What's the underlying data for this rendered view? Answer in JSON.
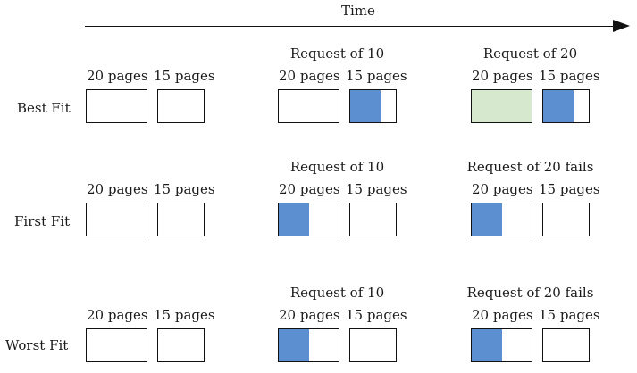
{
  "time_label": "Time",
  "colors": {
    "allocated": "#5b8fcf",
    "allocated_new": "#d6e8cd",
    "border": "#111111"
  },
  "block_labels": {
    "b20": "20 pages",
    "b15": "15 pages"
  },
  "rows": [
    {
      "name": "Best Fit",
      "stages": [
        {
          "request": "",
          "fill20": 0,
          "fill15": 0,
          "color20": "",
          "color15": ""
        },
        {
          "request": "Request of 10",
          "fill20": 0,
          "fill15": 0.67,
          "color20": "",
          "color15": "allocated"
        },
        {
          "request": "Request of 20",
          "fill20": 1,
          "fill15": 0.67,
          "color20": "allocated_new",
          "color15": "allocated"
        }
      ]
    },
    {
      "name": "First Fit",
      "stages": [
        {
          "request": "",
          "fill20": 0,
          "fill15": 0,
          "color20": "",
          "color15": ""
        },
        {
          "request": "Request of 10",
          "fill20": 0.5,
          "fill15": 0,
          "color20": "allocated",
          "color15": ""
        },
        {
          "request": "Request of 20 fails",
          "fill20": 0.5,
          "fill15": 0,
          "color20": "allocated",
          "color15": ""
        }
      ]
    },
    {
      "name": "Worst Fit",
      "stages": [
        {
          "request": "",
          "fill20": 0,
          "fill15": 0,
          "color20": "",
          "color15": ""
        },
        {
          "request": "Request of 10",
          "fill20": 0.5,
          "fill15": 0,
          "color20": "allocated",
          "color15": ""
        },
        {
          "request": "Request of 20 fails",
          "fill20": 0.5,
          "fill15": 0,
          "color20": "allocated",
          "color15": ""
        }
      ]
    }
  ]
}
